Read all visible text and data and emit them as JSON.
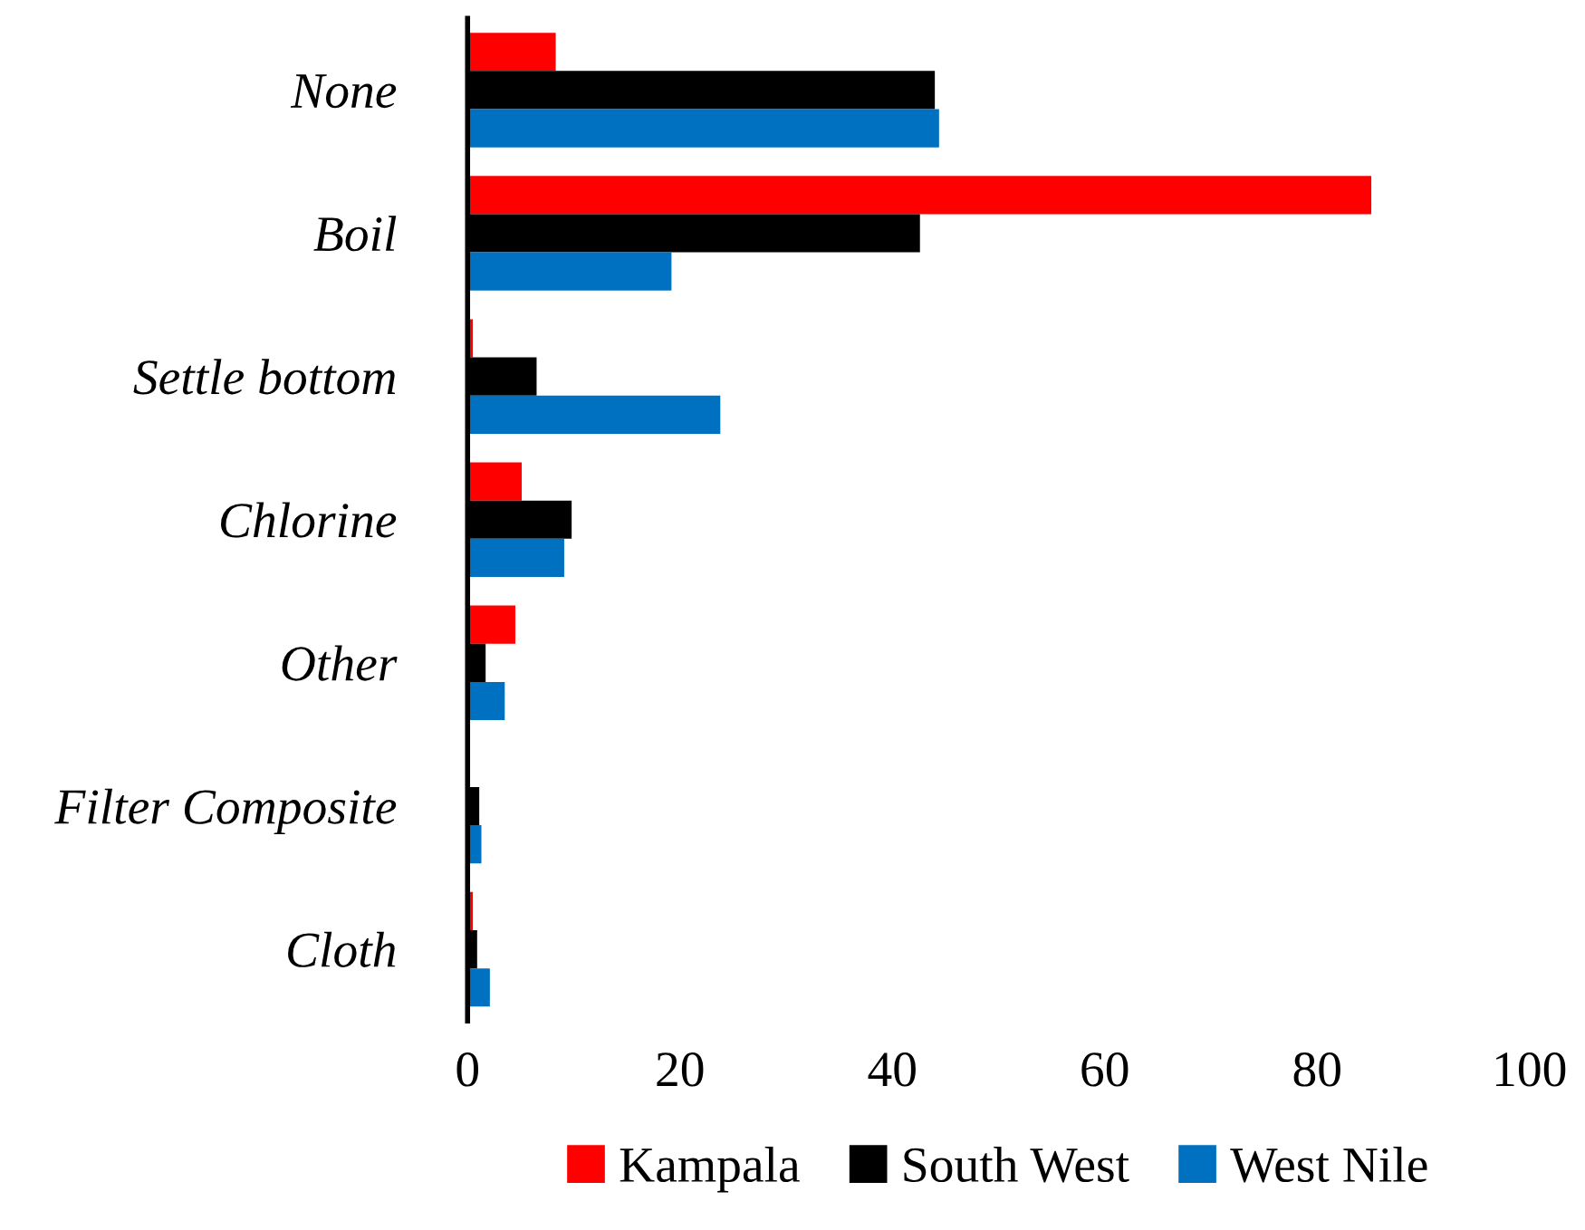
{
  "chart_data": {
    "type": "bar",
    "orientation": "horizontal",
    "categories": [
      "None",
      "Boil",
      "Settle bottom",
      "Chlorine",
      "Other",
      "Filter Composite",
      "Cloth"
    ],
    "series": [
      {
        "name": "Kampala",
        "color": "#ff0000",
        "values": [
          8.3,
          85.1,
          0.5,
          5.1,
          4.5,
          0,
          0.5
        ]
      },
      {
        "name": "South West",
        "color": "#000000",
        "values": [
          44.0,
          42.6,
          6.5,
          9.8,
          1.7,
          1.1,
          0.9
        ]
      },
      {
        "name": "West Nile",
        "color": "#0070c0",
        "values": [
          44.4,
          19.2,
          23.8,
          9.1,
          3.5,
          1.3,
          2.1
        ]
      }
    ],
    "xlim": [
      0,
      100
    ],
    "xticks": [
      0,
      20,
      40,
      60,
      80,
      100
    ],
    "grid": false,
    "legend": "bottom"
  }
}
